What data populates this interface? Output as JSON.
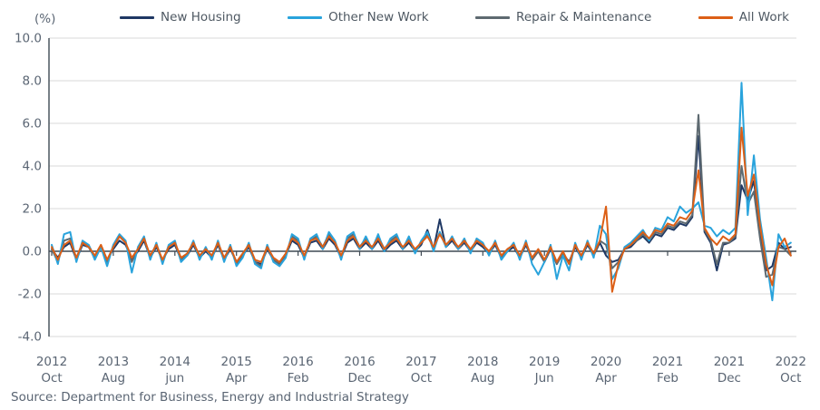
{
  "page": {
    "source_note": "Source: Department for Business, Energy and Industrial Strategy"
  },
  "chart_data": {
    "type": "line",
    "title": "",
    "unit_label": "(%)",
    "ylabel": "(%)",
    "frequency": "monthly",
    "x_start": "2012-10",
    "x_end": "2022-10",
    "ylim": [
      -4.0,
      10.0
    ],
    "grid": true,
    "legend_position": "top",
    "yticks": [
      {
        "value": 10.0,
        "label": "10.0"
      },
      {
        "value": 8.0,
        "label": "8.0"
      },
      {
        "value": 6.0,
        "label": "6.0"
      },
      {
        "value": 4.0,
        "label": "4.0"
      },
      {
        "value": 2.0,
        "label": "2.0"
      },
      {
        "value": 0.0,
        "label": "0.0"
      },
      {
        "value": -2.0,
        "label": "-2.0"
      },
      {
        "value": -4.0,
        "label": "-4.0"
      }
    ],
    "xticks": [
      {
        "month_index": 0,
        "year": "2012",
        "month": "Oct"
      },
      {
        "month_index": 10,
        "year": "2013",
        "month": "Aug"
      },
      {
        "month_index": 20,
        "year": "2014",
        "month": "jun"
      },
      {
        "month_index": 30,
        "year": "2015",
        "month": "Apr"
      },
      {
        "month_index": 40,
        "year": "2016",
        "month": "Feb"
      },
      {
        "month_index": 50,
        "year": "2016",
        "month": "Dec"
      },
      {
        "month_index": 60,
        "year": "2017",
        "month": "Oct"
      },
      {
        "month_index": 70,
        "year": "2018",
        "month": "Aug"
      },
      {
        "month_index": 80,
        "year": "2019",
        "month": "Jun"
      },
      {
        "month_index": 90,
        "year": "2020",
        "month": "Apr"
      },
      {
        "month_index": 100,
        "year": "2021",
        "month": "Feb"
      },
      {
        "month_index": 110,
        "year": "2021",
        "month": "Dec"
      },
      {
        "month_index": 120,
        "year": "2022",
        "month": "Oct"
      }
    ],
    "series": [
      {
        "name": "New Housing",
        "color": "#1F3864",
        "values": [
          0.1,
          -0.3,
          0.2,
          0.4,
          -0.4,
          0.3,
          0.2,
          -0.3,
          0.2,
          -0.4,
          0.1,
          0.5,
          0.3,
          -0.4,
          0.0,
          0.5,
          -0.3,
          0.2,
          -0.4,
          0.1,
          0.3,
          -0.4,
          -0.2,
          0.3,
          -0.3,
          0.0,
          -0.3,
          0.3,
          -0.4,
          0.1,
          -0.5,
          -0.2,
          0.2,
          -0.5,
          -0.6,
          0.1,
          -0.4,
          -0.6,
          -0.2,
          0.5,
          0.3,
          -0.3,
          0.4,
          0.5,
          0.1,
          0.6,
          0.3,
          -0.3,
          0.4,
          0.6,
          0.1,
          0.4,
          0.1,
          0.5,
          0.0,
          0.3,
          0.5,
          0.1,
          0.4,
          0.0,
          0.3,
          1.0,
          0.1,
          1.5,
          0.2,
          0.5,
          0.1,
          0.4,
          0.0,
          0.4,
          0.2,
          -0.1,
          0.3,
          -0.3,
          0.0,
          0.2,
          -0.3,
          0.3,
          -0.4,
          0.0,
          -0.5,
          0.1,
          -0.6,
          -0.1,
          -0.5,
          0.2,
          -0.3,
          0.3,
          -0.2,
          0.4,
          -0.2,
          -0.5,
          -0.4,
          0.1,
          0.2,
          0.5,
          0.7,
          0.4,
          0.8,
          0.7,
          1.1,
          1.0,
          1.3,
          1.2,
          1.6,
          5.4,
          0.9,
          0.4,
          -0.9,
          0.3,
          0.4,
          0.6,
          3.1,
          2.4,
          3.3,
          1.0,
          -0.9,
          -0.7,
          0.4,
          0.1,
          0.2
        ]
      },
      {
        "name": "Other New Work",
        "color": "#29A3DC",
        "values": [
          0.3,
          -0.6,
          0.8,
          0.9,
          -0.5,
          0.5,
          0.3,
          -0.4,
          0.2,
          -0.7,
          0.3,
          0.8,
          0.5,
          -1.0,
          0.2,
          0.7,
          -0.4,
          0.4,
          -0.6,
          0.3,
          0.5,
          -0.5,
          -0.2,
          0.5,
          -0.4,
          0.2,
          -0.4,
          0.5,
          -0.5,
          0.3,
          -0.7,
          -0.3,
          0.4,
          -0.6,
          -0.8,
          0.3,
          -0.5,
          -0.7,
          -0.3,
          0.8,
          0.6,
          -0.4,
          0.6,
          0.8,
          0.1,
          0.9,
          0.5,
          -0.4,
          0.7,
          0.9,
          0.1,
          0.7,
          0.1,
          0.8,
          0.0,
          0.6,
          0.8,
          0.1,
          0.7,
          -0.1,
          0.5,
          0.9,
          0.0,
          0.9,
          0.2,
          0.7,
          0.1,
          0.6,
          -0.1,
          0.6,
          0.4,
          -0.2,
          0.5,
          -0.4,
          0.0,
          0.4,
          -0.4,
          0.5,
          -0.6,
          -1.1,
          -0.5,
          0.3,
          -1.3,
          -0.2,
          -0.9,
          0.4,
          -0.4,
          0.5,
          -0.3,
          1.2,
          0.8,
          -1.3,
          -0.8,
          0.2,
          0.4,
          0.7,
          1.0,
          0.5,
          1.1,
          1.0,
          1.6,
          1.4,
          2.1,
          1.8,
          2.0,
          2.3,
          1.2,
          1.1,
          0.7,
          1.0,
          0.8,
          1.1,
          7.9,
          1.7,
          4.5,
          1.5,
          -0.3,
          -2.3,
          0.8,
          0.2,
          0.4
        ]
      },
      {
        "name": "Repair & Maintenance",
        "color": "#5E6A71",
        "values": [
          0.1,
          -0.5,
          0.5,
          0.6,
          -0.4,
          0.4,
          0.3,
          -0.3,
          0.2,
          -0.5,
          0.2,
          0.7,
          0.4,
          -0.5,
          0.1,
          0.6,
          -0.3,
          0.3,
          -0.5,
          0.2,
          0.4,
          -0.4,
          -0.1,
          0.4,
          -0.3,
          0.1,
          -0.3,
          0.4,
          -0.4,
          0.2,
          -0.6,
          -0.2,
          0.3,
          -0.5,
          -0.7,
          0.2,
          -0.4,
          -0.6,
          -0.2,
          0.7,
          0.5,
          -0.3,
          0.5,
          0.7,
          0.2,
          0.8,
          0.4,
          -0.3,
          0.6,
          0.8,
          0.2,
          0.6,
          0.1,
          0.7,
          0.1,
          0.5,
          0.7,
          0.1,
          0.6,
          0.0,
          0.4,
          0.8,
          0.1,
          0.9,
          0.3,
          0.6,
          0.1,
          0.5,
          0.0,
          0.5,
          0.3,
          -0.1,
          0.4,
          -0.3,
          0.1,
          0.3,
          -0.3,
          0.4,
          -0.4,
          0.0,
          -0.5,
          0.2,
          -0.6,
          -0.1,
          -0.6,
          0.3,
          -0.3,
          0.4,
          -0.2,
          0.5,
          0.3,
          -0.8,
          -0.5,
          0.1,
          0.3,
          0.5,
          0.8,
          0.5,
          0.9,
          0.8,
          1.2,
          1.1,
          1.4,
          1.3,
          1.7,
          6.4,
          1.0,
          0.5,
          -0.6,
          0.4,
          0.4,
          0.7,
          4.0,
          2.2,
          2.8,
          0.6,
          -1.2,
          -1.1,
          0.2,
          0.1,
          -0.2
        ]
      },
      {
        "name": "All Work",
        "color": "#DC5F16",
        "values": [
          0.2,
          -0.4,
          0.3,
          0.5,
          -0.3,
          0.4,
          0.2,
          -0.2,
          0.3,
          -0.4,
          0.2,
          0.7,
          0.4,
          -0.3,
          0.1,
          0.6,
          -0.2,
          0.3,
          -0.4,
          0.2,
          0.4,
          -0.3,
          -0.1,
          0.4,
          -0.2,
          0.1,
          -0.2,
          0.4,
          -0.3,
          0.2,
          -0.5,
          -0.1,
          0.3,
          -0.4,
          -0.5,
          0.2,
          -0.3,
          -0.5,
          -0.1,
          0.6,
          0.4,
          -0.2,
          0.5,
          0.6,
          0.2,
          0.7,
          0.4,
          -0.2,
          0.5,
          0.7,
          0.2,
          0.5,
          0.2,
          0.6,
          0.1,
          0.4,
          0.6,
          0.2,
          0.5,
          0.1,
          0.4,
          0.7,
          0.2,
          0.8,
          0.3,
          0.6,
          0.2,
          0.5,
          0.1,
          0.5,
          0.3,
          0.0,
          0.4,
          -0.2,
          0.1,
          0.3,
          -0.2,
          0.4,
          -0.3,
          0.1,
          -0.4,
          0.2,
          -0.5,
          0.0,
          -0.6,
          0.3,
          -0.2,
          0.4,
          -0.1,
          0.5,
          2.1,
          -1.9,
          -0.6,
          0.1,
          0.3,
          0.6,
          0.9,
          0.6,
          1.0,
          0.9,
          1.3,
          1.2,
          1.6,
          1.5,
          1.9,
          3.8,
          1.1,
          0.6,
          0.3,
          0.7,
          0.5,
          0.8,
          5.8,
          2.6,
          3.6,
          1.2,
          -0.6,
          -1.6,
          0.2,
          0.6,
          -0.2
        ]
      }
    ],
    "colors": {
      "gridline": "#D9D9D9",
      "axis": "#3F4A54",
      "tick_text": "#5A6573"
    }
  }
}
